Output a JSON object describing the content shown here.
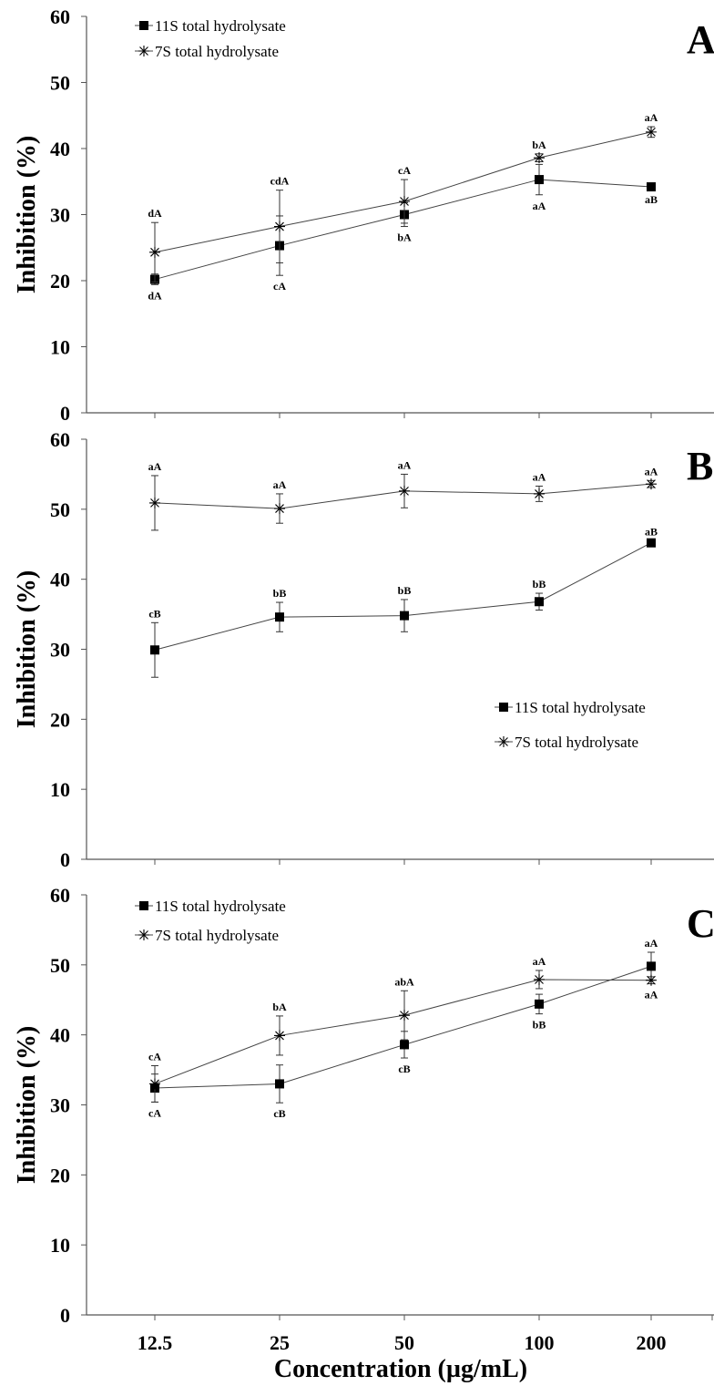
{
  "chart_data": [
    {
      "type": "line",
      "panel": "A",
      "ylabel": "Inhibition (%)",
      "xlabel": "",
      "ylim": [
        0,
        60
      ],
      "yticks": [
        0,
        10,
        20,
        30,
        40,
        50,
        60
      ],
      "categories": [
        "12.5",
        "25",
        "50",
        "100",
        "200"
      ],
      "show_xtick_labels": false,
      "legend_position": "top-left",
      "series": [
        {
          "name": "11S total hydrolysate",
          "marker": "square",
          "values": [
            20.2,
            25.3,
            30.0,
            35.3,
            34.2
          ],
          "errors": [
            0.8,
            4.5,
            1.8,
            2.3,
            0.3
          ],
          "labels": [
            "dA",
            "cA",
            "bA",
            "aA",
            "aB"
          ],
          "label_position": "below"
        },
        {
          "name": "7S total hydrolysate",
          "marker": "asterisk",
          "values": [
            24.3,
            28.2,
            32.0,
            38.6,
            42.5
          ],
          "errors": [
            4.5,
            5.5,
            3.3,
            0.6,
            0.8
          ],
          "labels": [
            "dA",
            "cdA",
            "cA",
            "bA",
            "aA"
          ],
          "label_position": "above"
        }
      ]
    },
    {
      "type": "line",
      "panel": "B",
      "ylabel": "Inhibition (%)",
      "xlabel": "",
      "ylim": [
        0,
        60
      ],
      "yticks": [
        0,
        10,
        20,
        30,
        40,
        50,
        60
      ],
      "categories": [
        "12.5",
        "25",
        "50",
        "100",
        "200"
      ],
      "show_xtick_labels": false,
      "legend_position": "center-right",
      "series": [
        {
          "name": "11S total hydrolysate",
          "marker": "square",
          "values": [
            29.9,
            34.6,
            34.8,
            36.8,
            45.2
          ],
          "errors": [
            3.9,
            2.1,
            2.3,
            1.2,
            0.3
          ],
          "labels": [
            "cB",
            "bB",
            "bB",
            "bB",
            "aB"
          ],
          "label_position": "above"
        },
        {
          "name": "7S total hydrolysate",
          "marker": "asterisk",
          "values": [
            50.9,
            50.1,
            52.6,
            52.2,
            53.6
          ],
          "errors": [
            3.9,
            2.1,
            2.4,
            1.1,
            0.5
          ],
          "labels": [
            "aA",
            "aA",
            "aA",
            "aA",
            "aA"
          ],
          "label_position": "above"
        }
      ]
    },
    {
      "type": "line",
      "panel": "C",
      "ylabel": "Inhibition (%)",
      "xlabel": "Concentration (µg/mL)",
      "ylim": [
        0,
        60
      ],
      "yticks": [
        0,
        10,
        20,
        30,
        40,
        50,
        60
      ],
      "categories": [
        "12.5",
        "25",
        "50",
        "100",
        "200"
      ],
      "show_xtick_labels": true,
      "legend_position": "top-left",
      "series": [
        {
          "name": "11S total hydrolysate",
          "marker": "square",
          "values": [
            32.4,
            33.0,
            38.6,
            44.4,
            49.8
          ],
          "errors": [
            2.0,
            2.7,
            1.9,
            1.4,
            2.0
          ],
          "labels": [
            "cA",
            "cB",
            "cB",
            "bB",
            "aA"
          ],
          "label_position": "mixed",
          "label_sides": [
            "below",
            "below",
            "below",
            "below",
            "above"
          ]
        },
        {
          "name": "7S total hydrolysate",
          "marker": "asterisk",
          "values": [
            33.0,
            39.9,
            42.8,
            47.9,
            47.8
          ],
          "errors": [
            2.6,
            2.8,
            3.5,
            1.3,
            0.5
          ],
          "labels": [
            "cA",
            "bA",
            "abA",
            "aA",
            "aA"
          ],
          "label_position": "mixed",
          "label_sides": [
            "above",
            "above",
            "above",
            "above",
            "below"
          ]
        }
      ]
    }
  ]
}
